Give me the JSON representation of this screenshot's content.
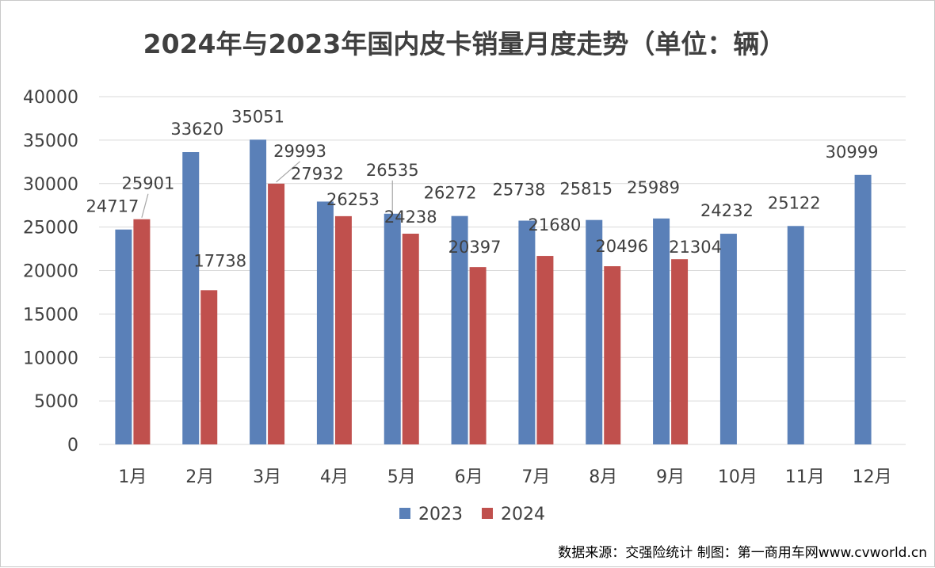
{
  "chart_data": {
    "type": "bar",
    "title": "2024年与2023年国内皮卡销量月度走势（单位：辆）",
    "xlabel": "",
    "ylabel": "",
    "categories": [
      "1月",
      "2月",
      "3月",
      "4月",
      "5月",
      "6月",
      "7月",
      "8月",
      "9月",
      "10月",
      "11月",
      "12月"
    ],
    "series": [
      {
        "name": "2023",
        "color": "#5a80b8",
        "values": [
          24717,
          33620,
          35051,
          27932,
          26535,
          26272,
          25738,
          25815,
          25989,
          24232,
          25122,
          30999
        ]
      },
      {
        "name": "2024",
        "color": "#c0504d",
        "values": [
          25901,
          17738,
          29993,
          26253,
          24238,
          20397,
          21680,
          20496,
          21304,
          null,
          null,
          null
        ]
      }
    ],
    "ylim": [
      0,
      40000
    ],
    "yticks": [
      0,
      5000,
      10000,
      15000,
      20000,
      25000,
      30000,
      35000,
      40000
    ],
    "grid": true,
    "legend": "bottom-center",
    "data_labels": true
  },
  "source_note": "数据来源：交强险统计 制图：第一商用车网www.cvworld.cn"
}
